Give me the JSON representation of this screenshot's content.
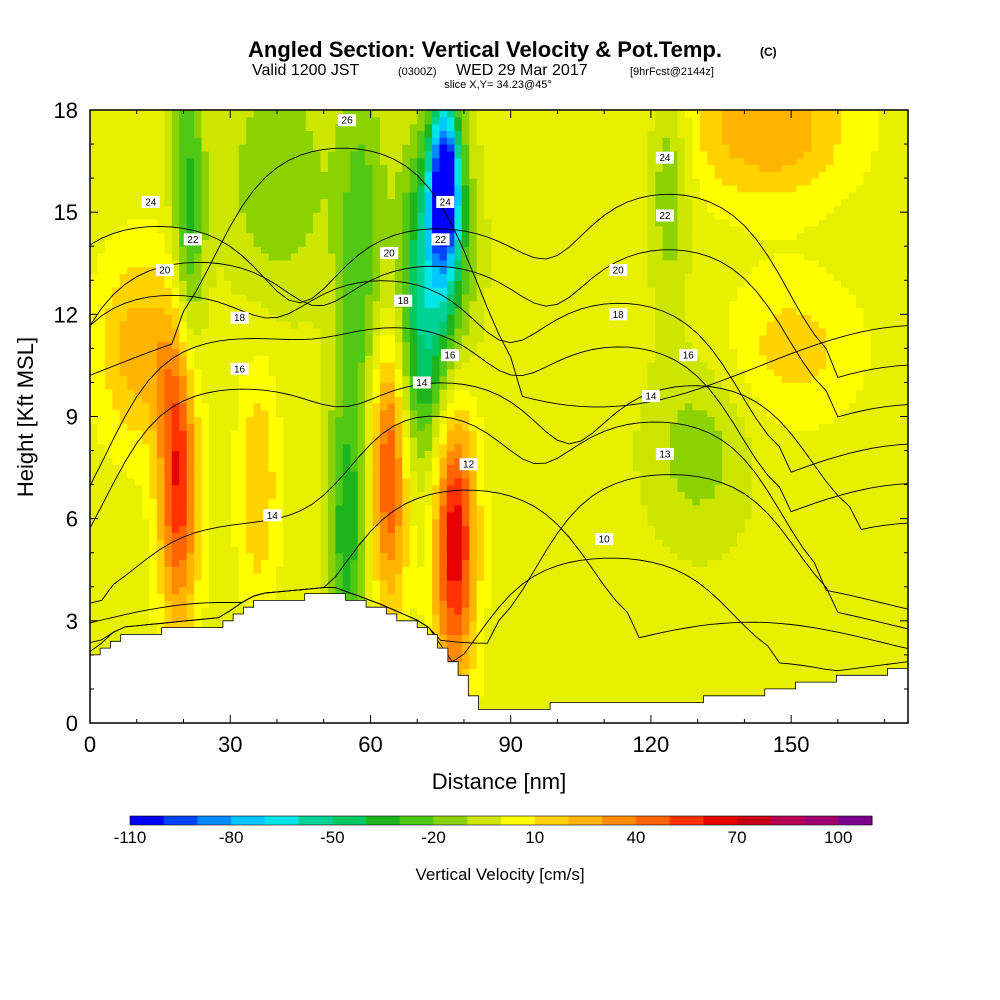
{
  "header": {
    "title": "Angled Section: Vertical Velocity & Pot.Temp.",
    "title_unit": "(C)",
    "valid_prefix": "Valid 1200 JST",
    "valid_zulu": "(0300Z)",
    "valid_date": "WED 29 Mar 2017",
    "valid_fcst": "[9hrFcst@2144z]",
    "slice": "slice X,Y= 34.23@45°"
  },
  "colors": {
    "palette": [
      "#0000ff",
      "#0044ff",
      "#0088ff",
      "#00c8ff",
      "#00e6e6",
      "#00d296",
      "#00c864",
      "#1eb41e",
      "#50c814",
      "#8cd200",
      "#cde600",
      "#e6f000",
      "#ffff00",
      "#ffd200",
      "#ffb400",
      "#ff8c00",
      "#ff6400",
      "#ff3200",
      "#e60000",
      "#c80014",
      "#b40050",
      "#a0006e",
      "#78008c",
      "#5a0096"
    ],
    "contour": "#000000",
    "terrain": "#ffffff"
  },
  "chart_data": {
    "type": "heatmap",
    "title": "Angled Section: Vertical Velocity & Pot.Temp.",
    "xlabel": "Distance [nm]",
    "ylabel": "Height [Kft MSL]",
    "xlim": [
      0,
      175
    ],
    "ylim": [
      0,
      18
    ],
    "xticks": [
      0,
      30,
      60,
      90,
      120,
      150
    ],
    "yticks": [
      0,
      3,
      6,
      9,
      12,
      15,
      18
    ],
    "colorbar": {
      "title": "Vertical Velocity [cm/s]",
      "min": -110,
      "max": 110,
      "step": 10,
      "tick_labels": [
        -110,
        -80,
        -50,
        -20,
        10,
        40,
        70,
        100
      ]
    },
    "vertical_velocity_features": [
      {
        "x": 19,
        "y": 7.5,
        "value": 70,
        "xspread": 3,
        "yspread": 3.2
      },
      {
        "x": 64,
        "y": 8.0,
        "value": 70,
        "xspread": 3,
        "yspread": 3.0
      },
      {
        "x": 78,
        "y": 5.5,
        "value": 75,
        "xspread": 3.2,
        "yspread": 3.0
      },
      {
        "x": 21,
        "y": 14.5,
        "value": -40,
        "xspread": 2.5,
        "yspread": 4.0
      },
      {
        "x": 76,
        "y": 16.0,
        "value": -100,
        "xspread": 2.2,
        "yspread": 1.6
      },
      {
        "x": 74,
        "y": 14.0,
        "value": -60,
        "xspread": 5,
        "yspread": 2.5
      },
      {
        "x": 70,
        "y": 10.0,
        "value": -35,
        "xspread": 6,
        "yspread": 2.5
      },
      {
        "x": 55,
        "y": 5.5,
        "value": -40,
        "xspread": 3,
        "yspread": 3.0
      },
      {
        "x": 58,
        "y": 14.0,
        "value": -30,
        "xspread": 4,
        "yspread": 4.0
      },
      {
        "x": 40,
        "y": 16.0,
        "value": -25,
        "xspread": 8,
        "yspread": 2.5
      },
      {
        "x": 124,
        "y": 16.0,
        "value": -25,
        "xspread": 3,
        "yspread": 2.5
      },
      {
        "x": 130,
        "y": 8.0,
        "value": -20,
        "xspread": 8,
        "yspread": 2.0
      },
      {
        "x": 145,
        "y": 17.5,
        "value": 35,
        "xspread": 12,
        "yspread": 1.5
      },
      {
        "x": 10,
        "y": 11.0,
        "value": 30,
        "xspread": 6,
        "yspread": 2.0
      },
      {
        "x": 36,
        "y": 7.0,
        "value": 25,
        "xspread": 3,
        "yspread": 2.5
      },
      {
        "x": 150,
        "y": 11.0,
        "value": 20,
        "xspread": 10,
        "yspread": 1.5
      }
    ],
    "terrain_height_kft": [
      [
        0,
        1.9
      ],
      [
        3,
        2.2
      ],
      [
        6,
        2.6
      ],
      [
        28,
        2.9
      ],
      [
        32,
        3.3
      ],
      [
        36,
        3.6
      ],
      [
        52,
        3.8
      ],
      [
        58,
        3.5
      ],
      [
        62,
        3.3
      ],
      [
        72,
        2.7
      ],
      [
        80,
        1.1
      ],
      [
        82,
        0.4
      ],
      [
        130,
        0.7
      ],
      [
        143,
        0.9
      ],
      [
        150,
        1.1
      ],
      [
        158,
        1.3
      ],
      [
        175,
        1.6
      ]
    ],
    "potential_temperature_contours_C": [
      {
        "value": 10,
        "label_at": [
          110,
          5.4
        ]
      },
      {
        "value": 12,
        "label_at": [
          81,
          7.6
        ]
      },
      {
        "value": 13,
        "label_at": [
          123,
          7.9
        ]
      },
      {
        "value": 14,
        "label_at": [
          39,
          6.1
        ]
      },
      {
        "value": 14,
        "label_at": [
          71,
          10.0
        ]
      },
      {
        "value": 14,
        "label_at": [
          120,
          9.6
        ]
      },
      {
        "value": 16,
        "label_at": [
          32,
          10.4
        ]
      },
      {
        "value": 16,
        "label_at": [
          77,
          10.8
        ]
      },
      {
        "value": 16,
        "label_at": [
          128,
          10.8
        ]
      },
      {
        "value": 18,
        "label_at": [
          32,
          11.9
        ]
      },
      {
        "value": 18,
        "label_at": [
          67,
          12.4
        ]
      },
      {
        "value": 18,
        "label_at": [
          113,
          12.0
        ]
      },
      {
        "value": 20,
        "label_at": [
          16,
          13.3
        ]
      },
      {
        "value": 20,
        "label_at": [
          64,
          13.8
        ]
      },
      {
        "value": 20,
        "label_at": [
          113,
          13.3
        ]
      },
      {
        "value": 22,
        "label_at": [
          22,
          14.2
        ]
      },
      {
        "value": 22,
        "label_at": [
          75,
          14.2
        ]
      },
      {
        "value": 22,
        "label_at": [
          123,
          14.9
        ]
      },
      {
        "value": 24,
        "label_at": [
          13,
          15.3
        ]
      },
      {
        "value": 24,
        "label_at": [
          76,
          15.3
        ]
      },
      {
        "value": 24,
        "label_at": [
          123,
          16.6
        ]
      },
      {
        "value": 26,
        "label_at": [
          55,
          17.7
        ]
      }
    ]
  }
}
